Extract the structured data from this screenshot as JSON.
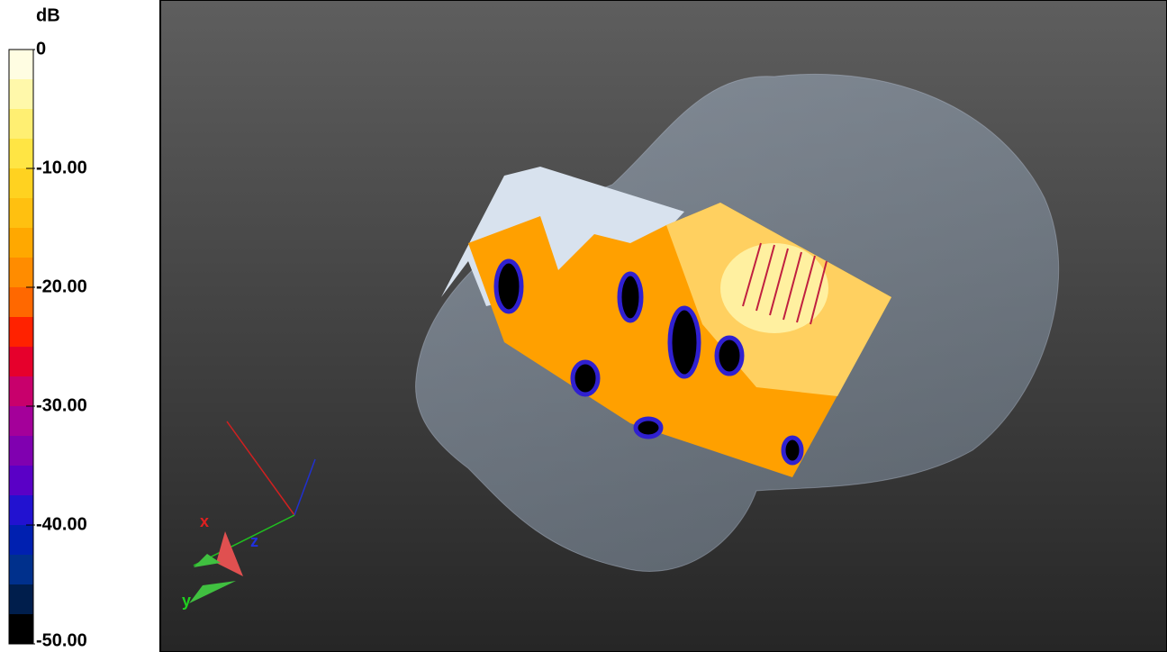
{
  "colorbar": {
    "unit": "dB",
    "ticks": [
      "0",
      "-10.00",
      "-20.00",
      "-30.00",
      "-40.00",
      "-50.00"
    ],
    "colors": [
      "#fffde2",
      "#fff8aa",
      "#ffef72",
      "#ffe544",
      "#ffd220",
      "#ffc010",
      "#ffa800",
      "#ff8c00",
      "#ff6800",
      "#ff2200",
      "#e6002c",
      "#c8006c",
      "#a4009a",
      "#8000b0",
      "#5a00c6",
      "#2212d0",
      "#0020b0",
      "#00308c",
      "#001e4c",
      "#000000"
    ]
  },
  "axes": {
    "x": "x",
    "y": "y",
    "z": "z"
  }
}
